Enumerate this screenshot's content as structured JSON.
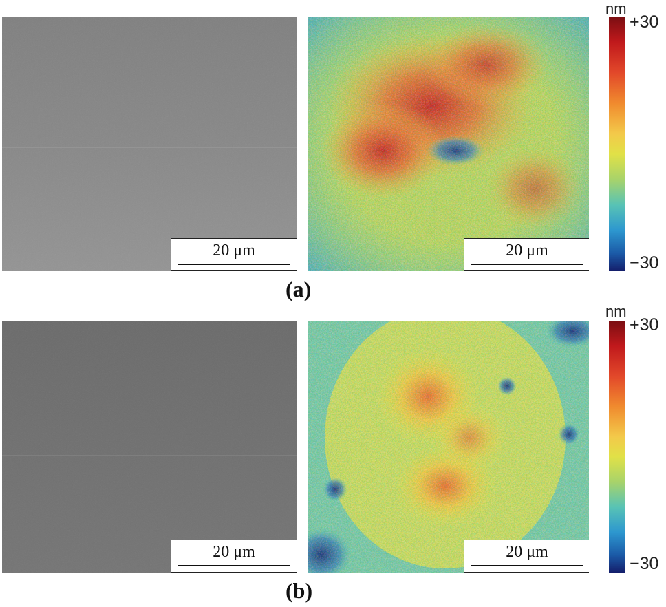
{
  "panels": [
    {
      "label": "(a)",
      "sem_scale": "20 μm",
      "height_scale": "20 μm",
      "colorbar": {
        "unit": "nm",
        "max": "+30",
        "min": "−30"
      }
    },
    {
      "label": "(b)",
      "sem_scale": "20 μm",
      "height_scale": "20 μm",
      "colorbar": {
        "unit": "nm",
        "max": "+30",
        "min": "−30"
      }
    }
  ],
  "colors": {
    "sem_a": "#8c8c8c",
    "sem_b": "#6f6f6f",
    "height_high": "#c0191c",
    "height_mid": "#e1e147",
    "height_low": "#1b5aa7"
  }
}
